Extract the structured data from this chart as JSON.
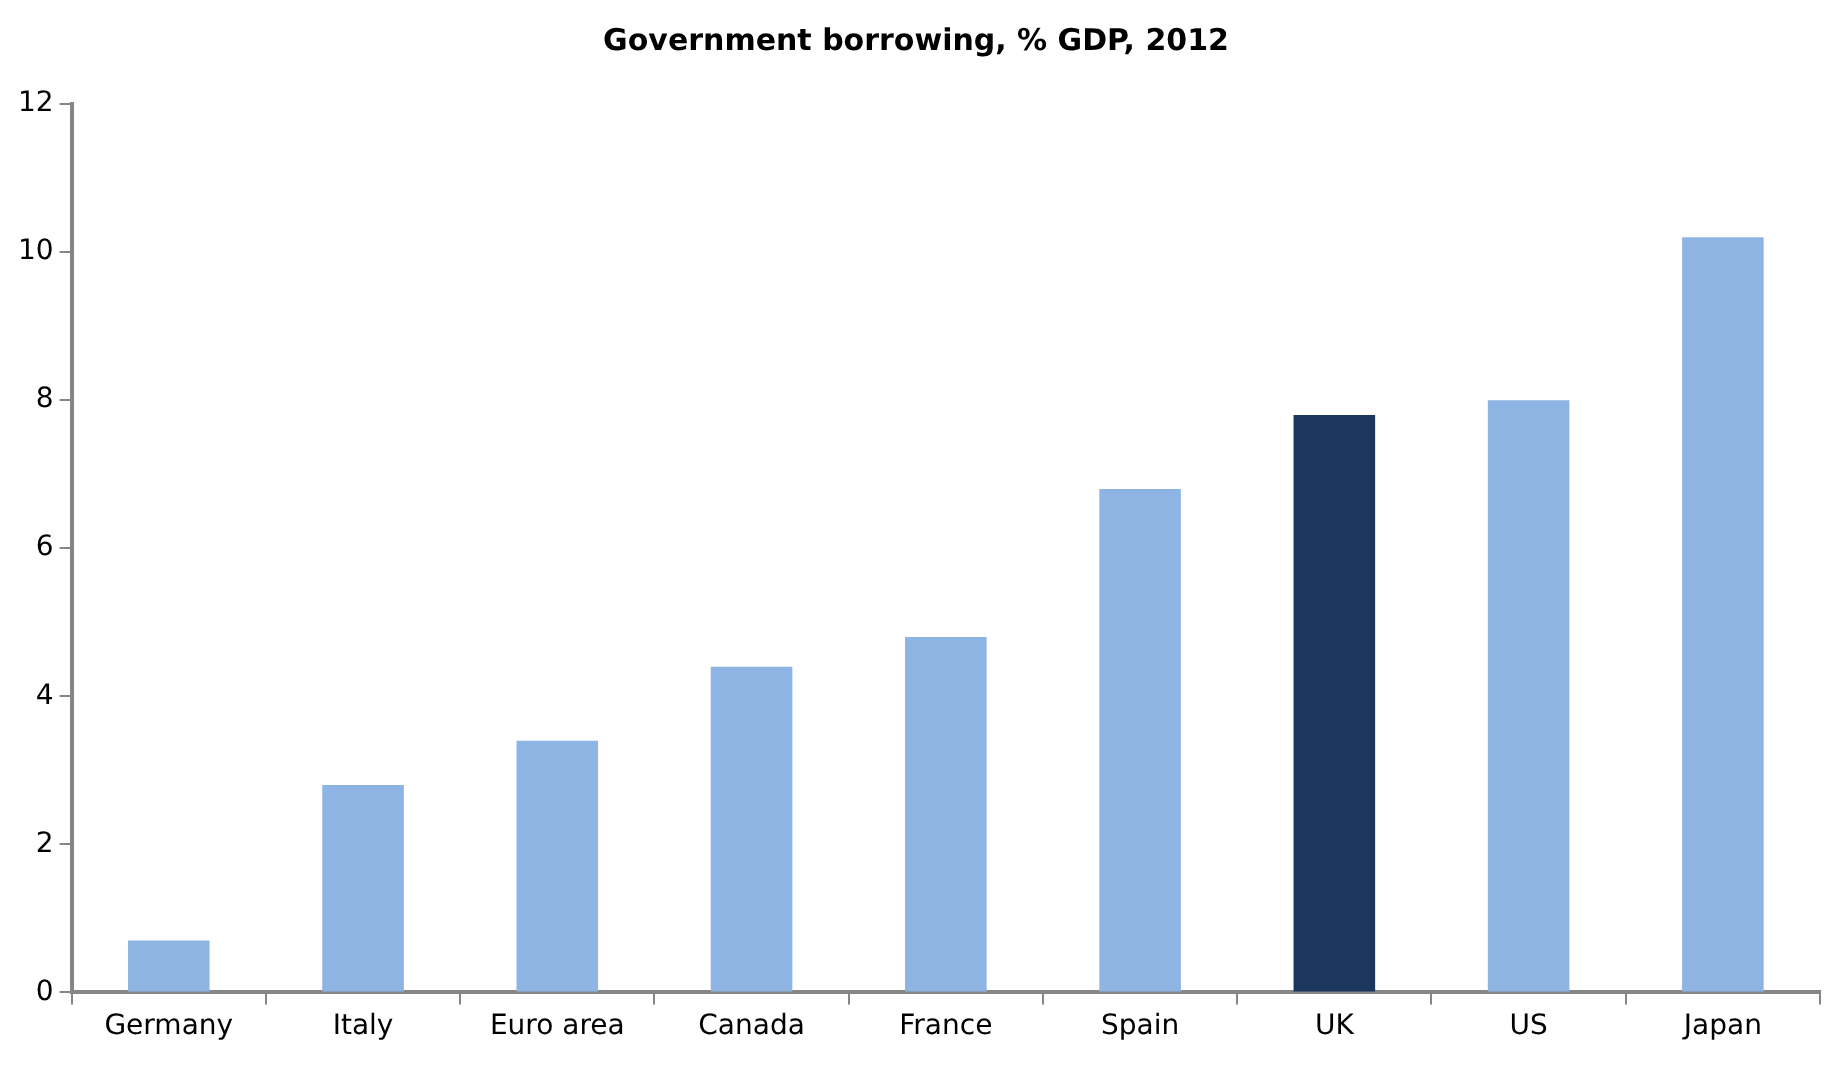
{
  "chart_data": {
    "type": "bar",
    "title": "Government borrowing, % GDP, 2012",
    "categories": [
      "Germany",
      "Italy",
      "Euro area",
      "Canada",
      "France",
      "Spain",
      "UK",
      "US",
      "Japan"
    ],
    "values": [
      0.7,
      2.8,
      3.4,
      4.4,
      4.8,
      6.8,
      7.8,
      8.0,
      10.2
    ],
    "colors": [
      "#8eb4e3",
      "#8eb4e3",
      "#8eb4e3",
      "#8eb4e3",
      "#8eb4e3",
      "#8eb4e3",
      "#1b375e",
      "#8eb4e3",
      "#8eb4e3"
    ],
    "ylim": [
      0,
      12
    ],
    "yticks": [
      0,
      2,
      4,
      6,
      8,
      10,
      12
    ],
    "grid": false,
    "legend": false
  }
}
